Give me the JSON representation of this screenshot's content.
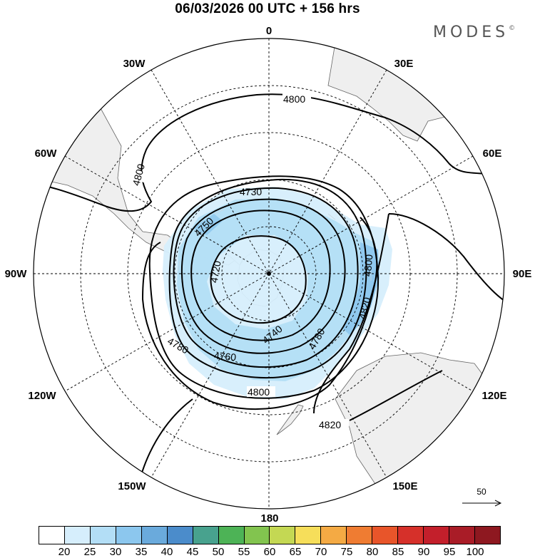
{
  "header": {
    "title": "06/03/2026  00 UTC  + 156 hrs",
    "brand": "MODES",
    "brand_mark": "©"
  },
  "map": {
    "projection": "south-polar-stereographic",
    "longitude_labels": {
      "lon0": "0",
      "lon30e": "30E",
      "lon60e": "60E",
      "lon90e": "90E",
      "lon120e": "120E",
      "lon150e": "150E",
      "lon180": "180",
      "lon150w": "150W",
      "lon120w": "120W",
      "lon90w": "90W",
      "lon60w": "60W",
      "lon30w": "30W"
    },
    "contour_labels": {
      "c4800_top": "4800",
      "c4800_left": "4800",
      "c4730": "4730",
      "c4750": "4750",
      "c4720": "4720",
      "c4800_right": "4800",
      "c4820_right": "4820",
      "c4740": "4740",
      "c4760": "4760",
      "c4780_right": "4780",
      "c4780_left": "4780",
      "c4800_bottom": "4800",
      "c4820_bottom": "4820"
    },
    "wind_reference": "50",
    "colors": {
      "land": "#efefef",
      "coast": "#666666",
      "contour": "#000000",
      "wind_light": "#d6eefc",
      "wind_mid": "#b3def6",
      "wind_strong": "#8cc7ee"
    }
  },
  "colorbar": {
    "colors": [
      "#ffffff",
      "#d6eefc",
      "#b3def6",
      "#8cc7ee",
      "#6aaadc",
      "#4b8ccb",
      "#48a28e",
      "#4db356",
      "#82c44f",
      "#c4d853",
      "#f6de5a",
      "#f4aa44",
      "#ef7c32",
      "#e8552a",
      "#d6302a",
      "#c31f2b",
      "#a91c27",
      "#8e1820"
    ],
    "labels": [
      "20",
      "25",
      "30",
      "35",
      "40",
      "45",
      "50",
      "55",
      "60",
      "65",
      "70",
      "75",
      "80",
      "85",
      "90",
      "95",
      "100"
    ]
  }
}
